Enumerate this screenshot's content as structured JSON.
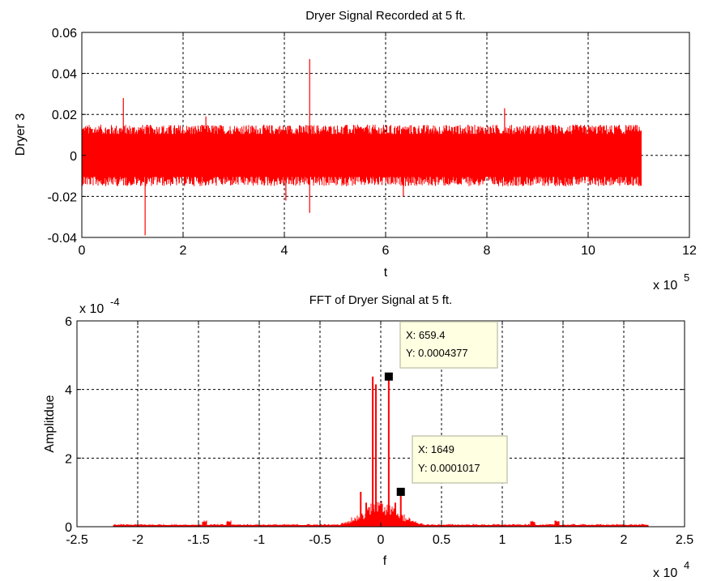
{
  "chart_data": [
    {
      "type": "line",
      "title": "Dryer Signal Recorded at 5 ft.",
      "xlabel": "t",
      "ylabel": "Dryer 3",
      "x_exponent_label": "x 10",
      "x_exponent_power": "5",
      "xlim": [
        0,
        12
      ],
      "ylim": [
        -0.04,
        0.06
      ],
      "x_ticks": [
        0,
        2,
        4,
        6,
        8,
        10,
        12
      ],
      "x_tick_labels": [
        "0",
        "2",
        "4",
        "6",
        "8",
        "10",
        "12"
      ],
      "y_ticks": [
        -0.04,
        -0.02,
        0,
        0.02,
        0.04,
        0.06
      ],
      "y_tick_labels": [
        "-0.04",
        "-0.02",
        "0",
        "0.02",
        "0.04",
        "0.06"
      ],
      "grid": true,
      "line_color": "#ff0000",
      "signal": {
        "x_start": 0,
        "x_end": 11.05,
        "envelope_upper": 0.015,
        "envelope_lower": -0.015,
        "spikes": [
          {
            "x": 0.82,
            "y": 0.028
          },
          {
            "x": 1.25,
            "y": -0.039
          },
          {
            "x": 4.03,
            "y": -0.022
          },
          {
            "x": 4.5,
            "y": 0.047
          },
          {
            "x": 4.5,
            "y": -0.028
          },
          {
            "x": 8.35,
            "y": 0.023
          },
          {
            "x": 6.35,
            "y": -0.02
          },
          {
            "x": 2.45,
            "y": 0.019
          }
        ]
      }
    },
    {
      "type": "line",
      "title": "FFT of Dryer Signal at 5 ft.",
      "xlabel": "f",
      "ylabel": "Amplitdue",
      "x_exponent_label": "x 10",
      "x_exponent_power": "4",
      "y_exponent_label": "x 10",
      "y_exponent_power": "-4",
      "xlim": [
        -2.5,
        2.5
      ],
      "ylim": [
        0,
        6
      ],
      "x_ticks": [
        -2.5,
        -2,
        -1.5,
        -1,
        -0.5,
        0,
        0.5,
        1,
        1.5,
        2,
        2.5
      ],
      "x_tick_labels": [
        "-2.5",
        "-2",
        "-1.5",
        "-1",
        "-0.5",
        "0",
        "0.5",
        "1",
        "1.5",
        "2",
        "2.5"
      ],
      "y_ticks": [
        0,
        2,
        4,
        6
      ],
      "y_tick_labels": [
        "0",
        "2",
        "4",
        "6"
      ],
      "grid": true,
      "line_color": "#ff0000",
      "spectrum": {
        "x_start": -2.2,
        "x_end": 2.2,
        "peaks": [
          {
            "x": 0.0659,
            "y": 4.377
          },
          {
            "x": -0.0659,
            "y": 4.377
          },
          {
            "x": -0.04,
            "y": 4.15
          },
          {
            "x": 0.1649,
            "y": 1.017
          },
          {
            "x": -0.1649,
            "y": 1.017
          },
          {
            "x": -0.12,
            "y": 0.7
          },
          {
            "x": 0.12,
            "y": 0.7
          }
        ]
      },
      "datatips": [
        {
          "x_text": "X: 659.4",
          "y_text": "Y: 0.0004377",
          "x": 0.0659,
          "y": 4.377
        },
        {
          "x_text": "X: 1649",
          "y_text": "Y: 0.0001017",
          "x": 0.1649,
          "y": 1.017
        }
      ]
    }
  ]
}
